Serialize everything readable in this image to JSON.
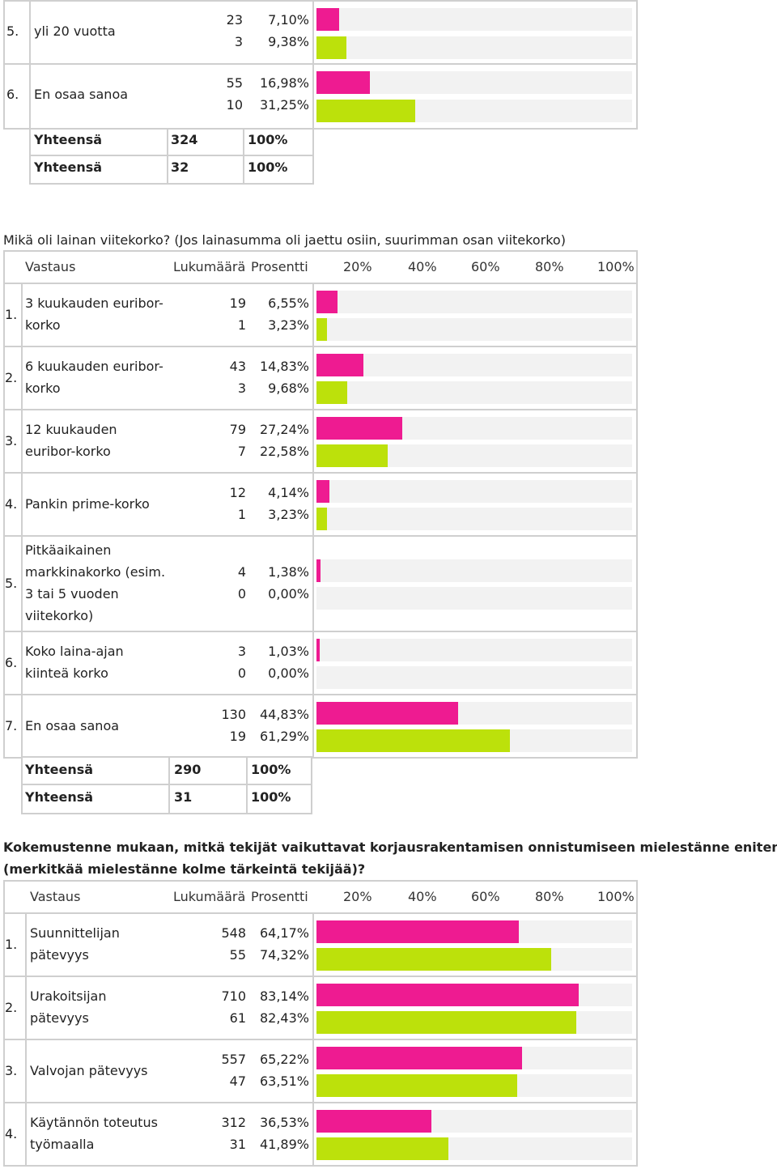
{
  "colors": {
    "pink": "#ee1b91",
    "green": "#bce10b",
    "track": "#f2f2f2",
    "border": "#cfcfcf"
  },
  "header": {
    "answer": "Vastaus",
    "count": "Lukumäärä",
    "percent": "Prosentti",
    "ticks": [
      "20%",
      "40%",
      "60%",
      "80%",
      "100%"
    ]
  },
  "s1": {
    "rows": [
      {
        "num": "5.",
        "label": "yli 20 vuotta",
        "c1": "23",
        "p1": "7,10%",
        "c2": "3",
        "p2": "9,38%",
        "v1": 7.1,
        "v2": 9.38
      },
      {
        "num": "6.",
        "label": "En osaa sanoa",
        "c1": "55",
        "p1": "16,98%",
        "c2": "10",
        "p2": "31,25%",
        "v1": 16.98,
        "v2": 31.25
      }
    ],
    "totals": [
      {
        "label": "Yhteensä",
        "count": "324",
        "percent": "100%"
      },
      {
        "label": "Yhteensä",
        "count": "32",
        "percent": "100%"
      }
    ]
  },
  "s2": {
    "question": "Mikä oli lainan viitekorko? (Jos lainasumma oli jaettu osiin, suurimman osan viitekorko)",
    "rows": [
      {
        "num": "1.",
        "label": [
          "3 kuukauden euribor-",
          "korko"
        ],
        "c1": "19",
        "p1": "6,55%",
        "c2": "1",
        "p2": "3,23%",
        "v1": 6.55,
        "v2": 3.23
      },
      {
        "num": "2.",
        "label": [
          "6 kuukauden euribor-",
          "korko"
        ],
        "c1": "43",
        "p1": "14,83%",
        "c2": "3",
        "p2": "9,68%",
        "v1": 14.83,
        "v2": 9.68
      },
      {
        "num": "3.",
        "label": [
          "12 kuukauden",
          "euribor-korko"
        ],
        "c1": "79",
        "p1": "27,24%",
        "c2": "7",
        "p2": "22,58%",
        "v1": 27.24,
        "v2": 22.58
      },
      {
        "num": "4.",
        "label": [
          "Pankin prime-korko"
        ],
        "c1": "12",
        "p1": "4,14%",
        "c2": "1",
        "p2": "3,23%",
        "v1": 4.14,
        "v2": 3.23
      },
      {
        "num": "5.",
        "label": [
          "Pitkäaikainen",
          "markkinakorko (esim.",
          "3 tai 5 vuoden",
          "viitekorko)"
        ],
        "c1": "4",
        "p1": "1,38%",
        "c2": "0",
        "p2": "0,00%",
        "v1": 1.38,
        "v2": 0
      },
      {
        "num": "6.",
        "label": [
          "Koko laina-ajan",
          "kiinteä korko"
        ],
        "c1": "3",
        "p1": "1,03%",
        "c2": "0",
        "p2": "0,00%",
        "v1": 1.03,
        "v2": 0
      },
      {
        "num": "7.",
        "label": [
          "En osaa sanoa"
        ],
        "c1": "130",
        "p1": "44,83%",
        "c2": "19",
        "p2": "61,29%",
        "v1": 44.83,
        "v2": 61.29
      }
    ],
    "totals": [
      {
        "label": "Yhteensä",
        "count": "290",
        "percent": "100%"
      },
      {
        "label": "Yhteensä",
        "count": "31",
        "percent": "100%"
      }
    ]
  },
  "s3": {
    "question": [
      "Kokemustenne mukaan, mitkä tekijät vaikuttavat korjausrakentamisen onnistumiseen mielestänne eniten",
      "(merkitkää mielestänne kolme tärkeintä tekijää)?"
    ],
    "rows": [
      {
        "num": "1.",
        "label": [
          "Suunnittelijan",
          "pätevyys"
        ],
        "c1": "548",
        "p1": "64,17%",
        "c2": "55",
        "p2": "74,32%",
        "v1": 64.17,
        "v2": 74.32
      },
      {
        "num": "2.",
        "label": [
          "Urakoitsijan",
          "pätevyys"
        ],
        "c1": "710",
        "p1": "83,14%",
        "c2": "61",
        "p2": "82,43%",
        "v1": 83.14,
        "v2": 82.43
      },
      {
        "num": "3.",
        "label": [
          "Valvojan pätevyys"
        ],
        "c1": "557",
        "p1": "65,22%",
        "c2": "47",
        "p2": "63,51%",
        "v1": 65.22,
        "v2": 63.51
      },
      {
        "num": "4.",
        "label": [
          "Käytännön toteutus",
          "työmaalla"
        ],
        "c1": "312",
        "p1": "36,53%",
        "c2": "31",
        "p2": "41,89%",
        "v1": 36.53,
        "v2": 41.89
      }
    ]
  }
}
